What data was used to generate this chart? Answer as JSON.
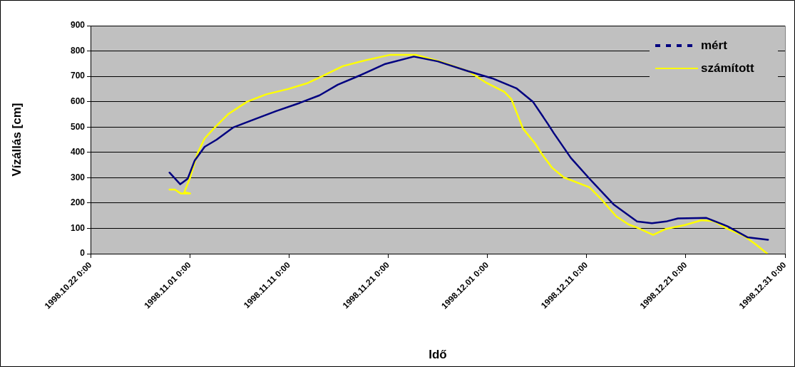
{
  "chart_data": {
    "type": "line",
    "xlabel": "Idő",
    "ylabel": "Vízállás [cm]",
    "xlim": [
      "1998-10-22T00:00",
      "1998-12-31T00:00"
    ],
    "xticks": [
      {
        "value": "1998-10-22T00:00",
        "label": "1998.10.22 0:00"
      },
      {
        "value": "1998-11-01T00:00",
        "label": "1998.11.01 0:00"
      },
      {
        "value": "1998-11-11T00:00",
        "label": "1998.11.11 0:00"
      },
      {
        "value": "1998-11-21T00:00",
        "label": "1998.11.21 0:00"
      },
      {
        "value": "1998-12-01T00:00",
        "label": "1998.12.01 0:00"
      },
      {
        "value": "1998-12-11T00:00",
        "label": "1998.12.11 0:00"
      },
      {
        "value": "1998-12-21T00:00",
        "label": "1998.12.21 0:00"
      },
      {
        "value": "1998-12-31T00:00",
        "label": "1998.12.31 0:00"
      }
    ],
    "ylim": [
      0,
      900
    ],
    "yticks": [
      0,
      100,
      200,
      300,
      400,
      500,
      600,
      700,
      800,
      900
    ],
    "grid": "y",
    "legend": "top right",
    "marker": "none",
    "series": [
      {
        "name": "mért",
        "color": "#000080",
        "x": [
          "1998-10-29T23:00",
          "1998-10-31T01:00",
          "1998-10-31T19:00",
          "1998-11-01T12:00",
          "1998-11-02T12:00",
          "1998-11-03T17:00",
          "1998-11-05T10:00",
          "1998-11-07T07:00",
          "1998-11-09T17:00",
          "1998-11-12T02:00",
          "1998-11-14T02:00",
          "1998-11-15T22:00",
          "1998-11-18T07:00",
          "1998-11-20T17:00",
          "1998-11-23T14:00",
          "1998-11-26T00:00",
          "1998-11-29T02:00",
          "1998-12-01T12:00",
          "1998-12-03T22:00",
          "1998-12-05T14:00",
          "1998-12-07T02:00",
          "1998-12-07T17:00",
          "1998-12-09T10:00",
          "1998-12-11T07:00",
          "1998-12-13T17:00",
          "1998-12-16T02:00",
          "1998-12-17T14:00",
          "1998-12-19T00:00",
          "1998-12-20T05:00",
          "1998-12-23T02:00",
          "1998-12-25T05:00",
          "1998-12-27T05:00",
          "1998-12-29T07:00"
        ],
        "values": [
          320,
          274,
          296,
          368,
          422,
          450,
          499,
          527,
          563,
          595,
          625,
          667,
          706,
          749,
          778,
          759,
          720,
          692,
          653,
          600,
          513,
          475,
          378,
          296,
          195,
          127,
          120,
          127,
          139,
          141,
          108,
          65,
          55
        ]
      },
      {
        "name": "számított",
        "color": "#ffff00",
        "x": [
          "1998-10-29T23:00",
          "1998-10-30T12:00",
          "1998-10-31T02:00",
          "1998-11-01T01:00",
          "1998-10-31T11:00",
          "1998-11-01T01:00",
          "1998-11-01T19:00",
          "1998-11-02T12:00",
          "1998-11-03T10:00",
          "1998-11-04T22:00",
          "1998-11-06T19:00",
          "1998-11-08T17:00",
          "1998-11-10T22:00",
          "1998-11-12T19:00",
          "1998-11-14T05:00",
          "1998-11-16T10:00",
          "1998-11-18T19:00",
          "1998-11-21T05:00",
          "1998-11-23T19:00",
          "1998-11-26T05:00",
          "1998-11-29T02:00",
          "1998-11-30T19:00",
          "1998-12-02T17:00",
          "1998-12-03T10:00",
          "1998-12-04T14:00",
          "1998-12-05T19:00",
          "1998-12-06T12:00",
          "1998-12-07T12:00",
          "1998-12-08T17:00",
          "1998-12-11T07:00",
          "1998-12-12T12:00",
          "1998-12-14T00:00",
          "1998-12-15T05:00",
          "1998-12-16T02:00",
          "1998-12-17T17:00",
          "1998-12-19T00:00",
          "1998-12-20T22:00",
          "1998-12-22T14:00",
          "1998-12-23T19:00",
          "1998-12-25T05:00",
          "1998-12-26T22:00",
          "1998-12-28T02:00",
          "1998-12-29T05:00"
        ],
        "values": [
          253,
          253,
          238,
          238,
          243,
          301,
          397,
          455,
          494,
          552,
          600,
          629,
          650,
          672,
          698,
          740,
          764,
          785,
          785,
          759,
          720,
          677,
          639,
          610,
          494,
          436,
          393,
          340,
          301,
          262,
          214,
          147,
          116,
          103,
          74,
          98,
          113,
          132,
          129,
          98,
          69,
          36,
          0
        ]
      }
    ]
  }
}
